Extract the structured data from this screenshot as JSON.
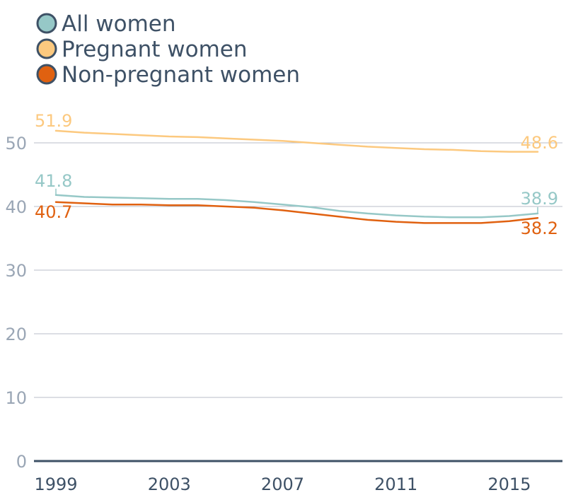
{
  "chart_data": {
    "type": "line",
    "title": "",
    "xlabel": "",
    "ylabel": "",
    "x_ticks": [
      "1999",
      "2003",
      "2007",
      "2011",
      "2015"
    ],
    "y_ticks": [
      "0",
      "10",
      "20",
      "30",
      "40",
      "50"
    ],
    "ylim": [
      0,
      55
    ],
    "xlim": [
      1999,
      2016
    ],
    "grid": true,
    "legend_position": "top-left",
    "x": [
      1999,
      2000,
      2001,
      2002,
      2003,
      2004,
      2005,
      2006,
      2007,
      2008,
      2009,
      2010,
      2011,
      2012,
      2013,
      2014,
      2015,
      2016
    ],
    "series": [
      {
        "name": "All women",
        "color": "#96c8c7",
        "values": [
          41.8,
          41.5,
          41.4,
          41.3,
          41.2,
          41.2,
          41.0,
          40.7,
          40.3,
          39.9,
          39.3,
          38.9,
          38.6,
          38.4,
          38.3,
          38.3,
          38.5,
          38.9
        ],
        "start_label": "41.8",
        "end_label": "38.9"
      },
      {
        "name": "Pregnant women",
        "color": "#fcc97f",
        "values": [
          51.9,
          51.6,
          51.4,
          51.2,
          51.0,
          50.9,
          50.7,
          50.5,
          50.3,
          50.0,
          49.7,
          49.4,
          49.2,
          49.0,
          48.9,
          48.7,
          48.6,
          48.6
        ],
        "start_label": "51.9",
        "end_label": "48.6"
      },
      {
        "name": "Non-pregnant women",
        "color": "#e06110",
        "values": [
          40.7,
          40.5,
          40.3,
          40.3,
          40.2,
          40.2,
          40.0,
          39.8,
          39.4,
          38.9,
          38.4,
          37.9,
          37.6,
          37.4,
          37.4,
          37.4,
          37.7,
          38.2
        ],
        "start_label": "40.7",
        "end_label": "38.2"
      }
    ]
  },
  "colors": {
    "legend_text": "#3e5166",
    "legend_stroke": "#3e5166",
    "tick_text_y": "#9aa6b5",
    "tick_text_x": "#3e5166",
    "grid": "#b8bec8",
    "axis": "#3e5166"
  }
}
